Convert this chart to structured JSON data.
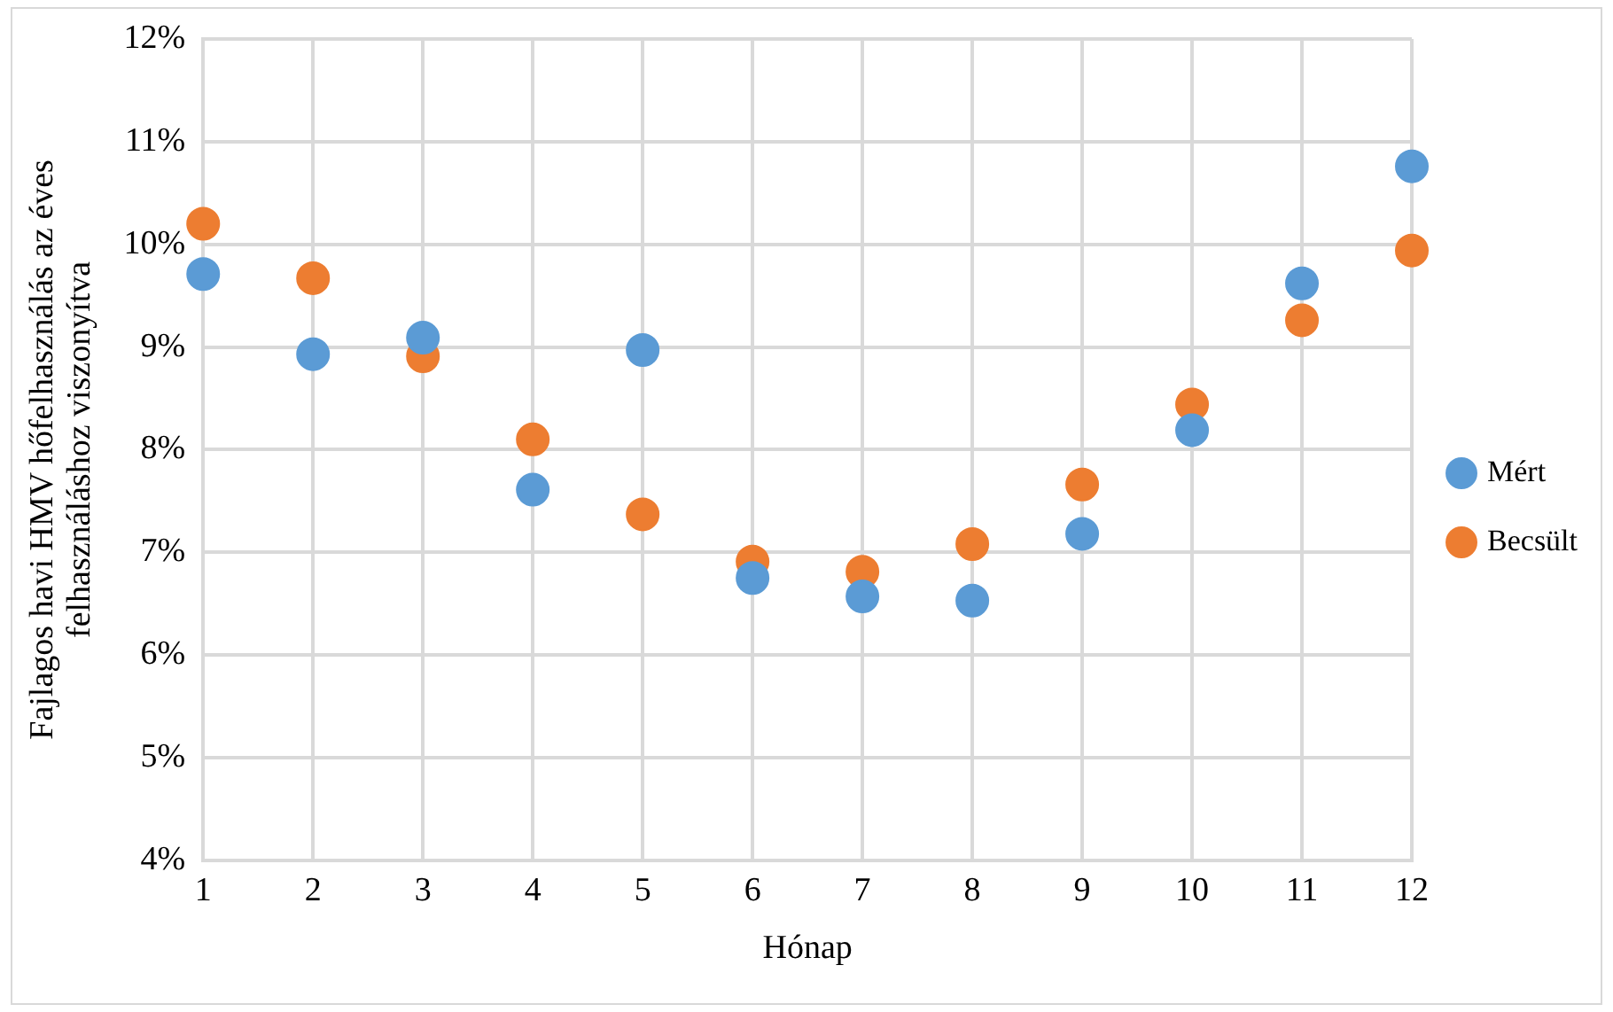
{
  "chart_data": {
    "type": "scatter",
    "xlabel": "Hónap",
    "ylabel": "Fajlagos havi HMV hőfelhasználás az éves\nfelhasználáshoz viszonyítva",
    "x": [
      1,
      2,
      3,
      4,
      5,
      6,
      7,
      8,
      9,
      10,
      11,
      12
    ],
    "series": [
      {
        "name": "Mért",
        "color": "#5b9bd5",
        "values": [
          9.71,
          8.93,
          9.09,
          7.61,
          8.97,
          6.75,
          6.57,
          6.53,
          7.18,
          8.19,
          9.62,
          10.76
        ]
      },
      {
        "name": "Becsült",
        "color": "#ed7d31",
        "values": [
          10.2,
          9.67,
          8.91,
          8.1,
          7.37,
          6.91,
          6.81,
          7.08,
          7.66,
          8.44,
          9.26,
          9.94
        ]
      }
    ],
    "xlim": [
      1,
      12
    ],
    "xticks": [
      1,
      2,
      3,
      4,
      5,
      6,
      7,
      8,
      9,
      10,
      11,
      12
    ],
    "ylim": [
      4,
      12
    ],
    "yticks": [
      {
        "value": 4,
        "label": "4%"
      },
      {
        "value": 5,
        "label": "5%"
      },
      {
        "value": 6,
        "label": "6%"
      },
      {
        "value": 7,
        "label": "7%"
      },
      {
        "value": 8,
        "label": "8%"
      },
      {
        "value": 9,
        "label": "9%"
      },
      {
        "value": 10,
        "label": "10%"
      },
      {
        "value": 11,
        "label": "11%"
      },
      {
        "value": 12,
        "label": "12%"
      }
    ],
    "grid": true,
    "legend": "right",
    "marker": "circle"
  }
}
